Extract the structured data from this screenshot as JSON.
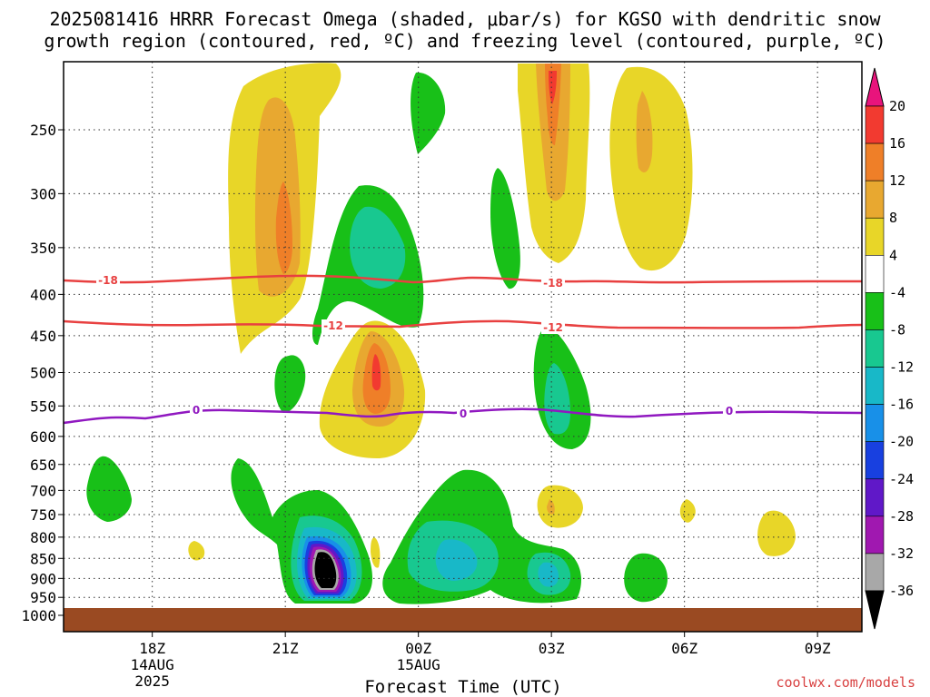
{
  "chart_data": {
    "type": "contour",
    "title_lines": [
      "2025081416 HRRR Forecast Omega (shaded, μbar/s) for KGSO with dendritic snow",
      "growth region (contoured, red, ºC) and freezing level (contoured, purple, ºC)"
    ],
    "xlabel": "Forecast Time (UTC)",
    "x_ticks": [
      {
        "label": "18Z",
        "label2": "14AUG",
        "label3": "2025",
        "hour": 2
      },
      {
        "label": "21Z",
        "label2": "",
        "label3": "",
        "hour": 5
      },
      {
        "label": "00Z",
        "label2": "15AUG",
        "label3": "",
        "hour": 8
      },
      {
        "label": "03Z",
        "label2": "",
        "label3": "",
        "hour": 11
      },
      {
        "label": "06Z",
        "label2": "",
        "label3": "",
        "hour": 14
      },
      {
        "label": "09Z",
        "label2": "",
        "label3": "",
        "hour": 17
      }
    ],
    "x_range_hours": [
      0.0,
      18.0
    ],
    "y_log_scale": true,
    "y_range_hPa": [
      1050,
      200
    ],
    "y_ticks": [
      250,
      300,
      350,
      400,
      450,
      500,
      550,
      600,
      650,
      700,
      750,
      800,
      850,
      900,
      950,
      1000
    ],
    "grid": "dotted",
    "colorbar": {
      "levels": [
        {
          "label": "20",
          "color": "#e8145a"
        },
        {
          "label": "16",
          "color": "#f23a30"
        },
        {
          "label": "12",
          "color": "#ef7f28"
        },
        {
          "label": "8",
          "color": "#e8a830"
        },
        {
          "label": "4",
          "color": "#e8d628"
        },
        {
          "label": "-4",
          "color": "#ffffff"
        },
        {
          "label": "-8",
          "color": "#18c018"
        },
        {
          "label": "-12",
          "color": "#18c890"
        },
        {
          "label": "-16",
          "color": "#18b8c8"
        },
        {
          "label": "-20",
          "color": "#1890e8"
        },
        {
          "label": "-24",
          "color": "#1840e0"
        },
        {
          "label": "-28",
          "color": "#6018c8"
        },
        {
          "label": "-32",
          "color": "#a018b0"
        },
        {
          "label": "-36",
          "color": "#a8a8a8"
        }
      ],
      "top_color": "#e8147c",
      "bottom_color": "#000000"
    },
    "contours": {
      "dgz_upper": {
        "label": "-18",
        "color": "#e84040"
      },
      "dgz_lower": {
        "label": "-12",
        "color": "#e84040"
      },
      "freezing": {
        "label": "0",
        "color": "#9018c0"
      }
    },
    "ground_color": "#9a4a22"
  },
  "credit": "coolwx.com/models"
}
